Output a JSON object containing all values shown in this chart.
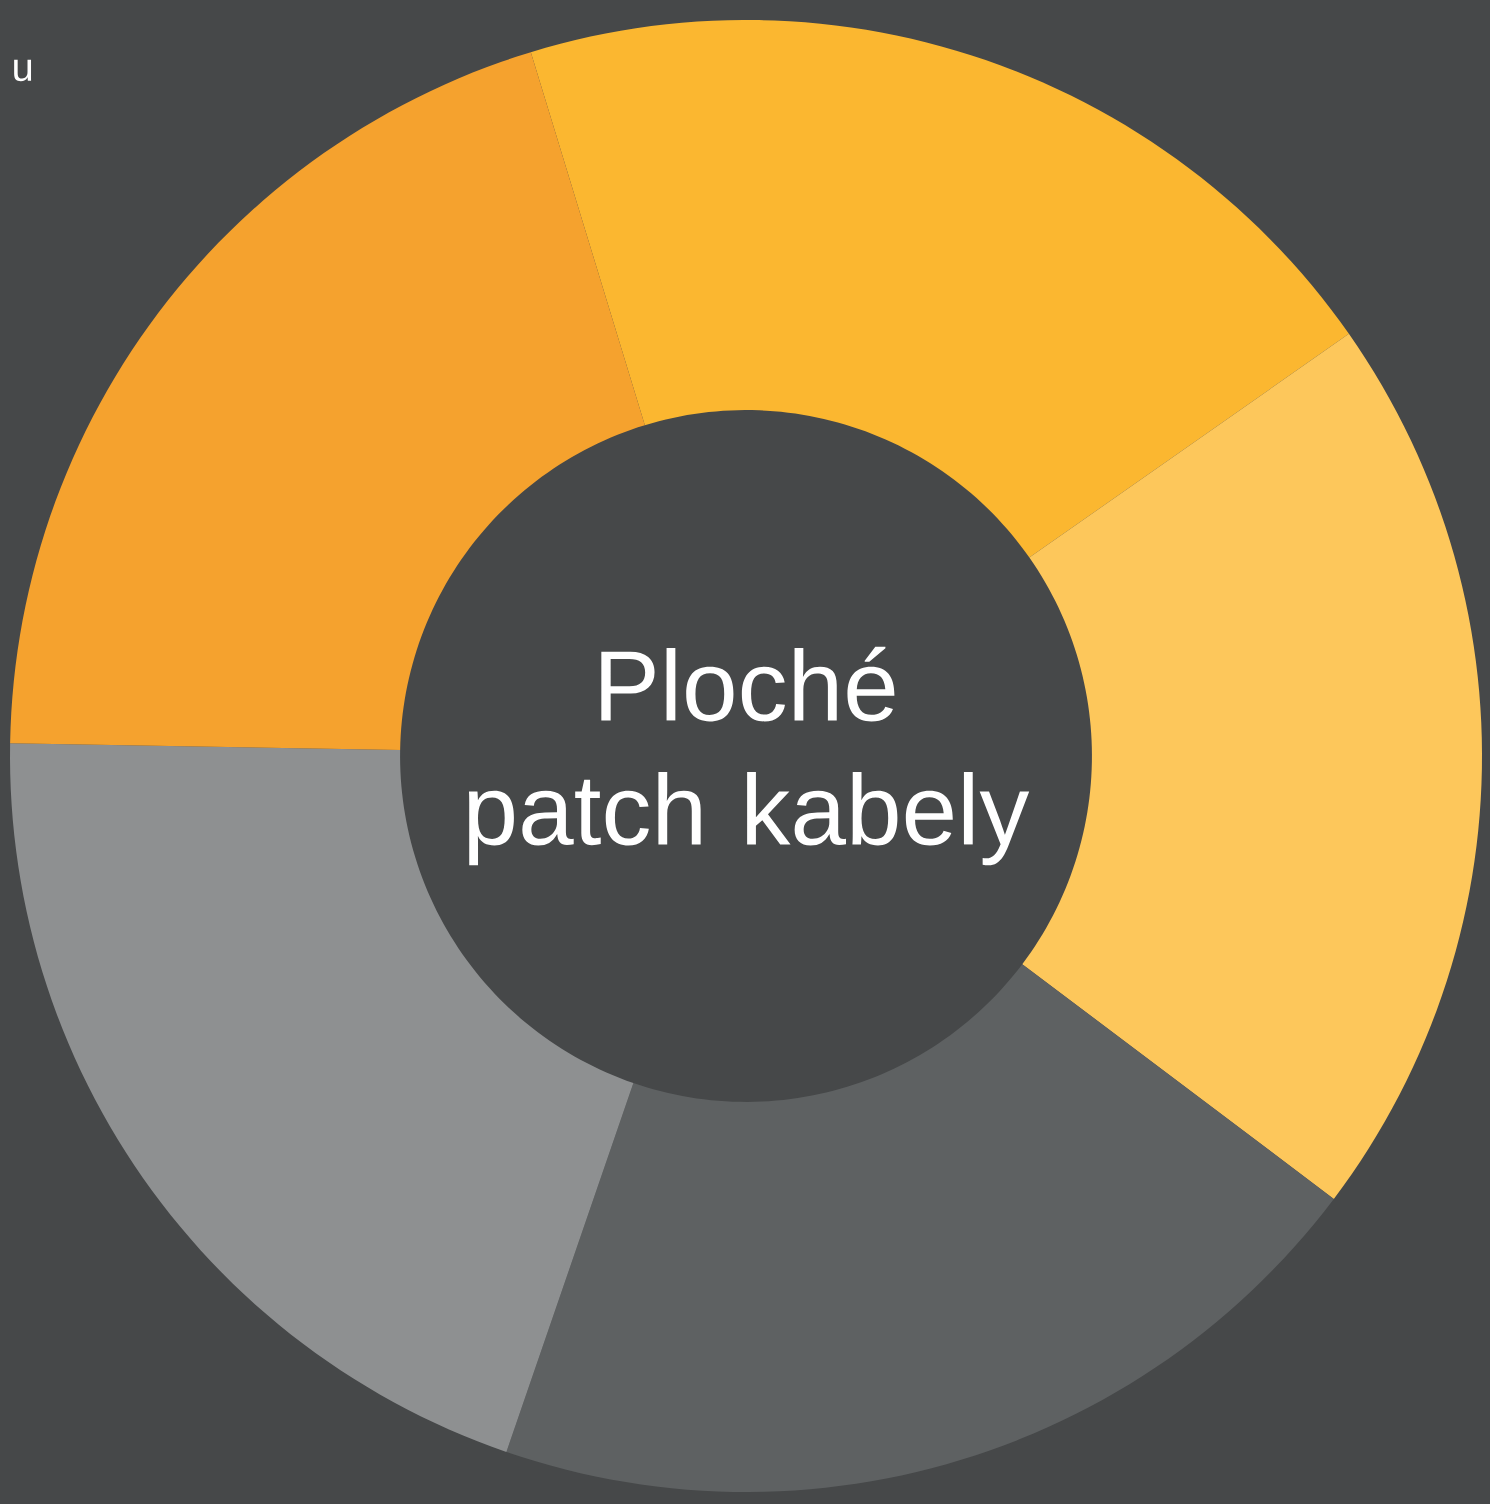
{
  "chart_data": {
    "type": "donut",
    "title": "Ploché patch kabely",
    "categories": [
      null,
      null,
      null,
      null,
      null
    ],
    "values": [
      20,
      20,
      20,
      20,
      20
    ],
    "colors": [
      "#fbb730",
      "#fdc75b",
      "#5e6162",
      "#8e9091",
      "#f5a22e"
    ],
    "annotations": [
      "u"
    ]
  }
}
